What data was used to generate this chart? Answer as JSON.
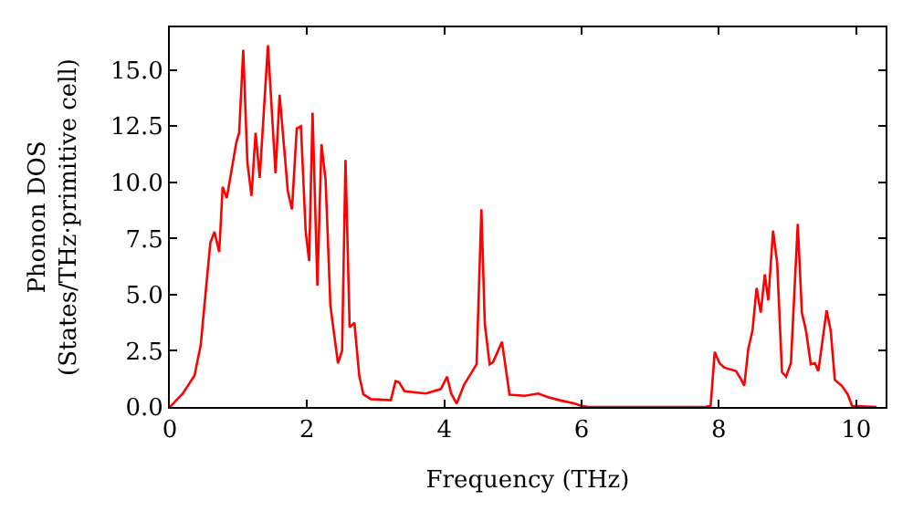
{
  "chart_data": {
    "type": "line",
    "xlabel": "Frequency (THz)",
    "ylabel": "Phonon DOS\n(States/THz·primitive cell)",
    "xlim": [
      0,
      10.43
    ],
    "ylim": [
      0,
      16.9
    ],
    "xticks": [
      0,
      2,
      4,
      6,
      8,
      10
    ],
    "yticks": [
      {
        "value": 0,
        "label": "0.0"
      },
      {
        "value": 2.5,
        "label": "2.5"
      },
      {
        "value": 5,
        "label": "5.0"
      },
      {
        "value": 7.5,
        "label": "7.5"
      },
      {
        "value": 10,
        "label": "10.0"
      },
      {
        "value": 12.5,
        "label": "12.5"
      },
      {
        "value": 15,
        "label": "15.0"
      }
    ],
    "marker": "none",
    "line_style": "solid",
    "series": [
      {
        "color": "#ff0000",
        "x": [
          0,
          0.19,
          0.36,
          0.45,
          0.59,
          0.65,
          0.72,
          0.77,
          0.83,
          0.97,
          1.01,
          1.07,
          1.13,
          1.19,
          1.25,
          1.31,
          1.43,
          1.54,
          1.6,
          1.72,
          1.78,
          1.85,
          1.91,
          1.98,
          2.03,
          2.08,
          2.15,
          2.21,
          2.27,
          2.34,
          2.45,
          2.51,
          2.56,
          2.62,
          2.69,
          2.76,
          2.82,
          2.93,
          3.22,
          3.29,
          3.34,
          3.42,
          3.73,
          3.95,
          4.04,
          4.1,
          4.18,
          4.29,
          4.47,
          4.54,
          4.59,
          4.66,
          4.71,
          4.84,
          4.95,
          5.17,
          5.37,
          5.5,
          5.68,
          5.9,
          5.99,
          6.1,
          7.8,
          7.88,
          7.94,
          8.01,
          8.08,
          8.25,
          8.31,
          8.37,
          8.43,
          8.49,
          8.55,
          8.61,
          8.67,
          8.72,
          8.79,
          8.85,
          8.92,
          8.98,
          9.05,
          9.15,
          9.21,
          9.27,
          9.34,
          9.4,
          9.45,
          9.57,
          9.63,
          9.69,
          9.79,
          9.88,
          9.94,
          10.3
        ],
        "values": [
          0,
          0.6,
          1.4,
          2.75,
          7.3,
          7.8,
          6.9,
          9.8,
          9.3,
          11.8,
          12.2,
          15.9,
          10.9,
          9.4,
          12.2,
          10.2,
          16.1,
          10.4,
          13.9,
          9.6,
          8.8,
          12.4,
          12.5,
          7.8,
          6.5,
          13.1,
          5.4,
          11.7,
          10.1,
          4.5,
          1.95,
          2.5,
          11.0,
          3.55,
          3.75,
          1.4,
          0.56,
          0.35,
          0.3,
          1.15,
          1.1,
          0.7,
          0.6,
          0.8,
          1.35,
          0.6,
          0.15,
          1.0,
          1.9,
          8.8,
          3.7,
          1.9,
          2.0,
          2.9,
          0.55,
          0.5,
          0.6,
          0.45,
          0.3,
          0.15,
          0.05,
          0,
          0,
          0.05,
          2.45,
          1.95,
          1.75,
          1.6,
          1.3,
          0.95,
          2.6,
          3.4,
          5.3,
          4.2,
          5.9,
          4.75,
          7.85,
          6.4,
          1.55,
          1.35,
          1.95,
          8.15,
          4.2,
          3.4,
          1.9,
          1.95,
          1.6,
          4.3,
          3.4,
          1.2,
          0.95,
          0.55,
          0.05,
          0
        ]
      }
    ]
  }
}
